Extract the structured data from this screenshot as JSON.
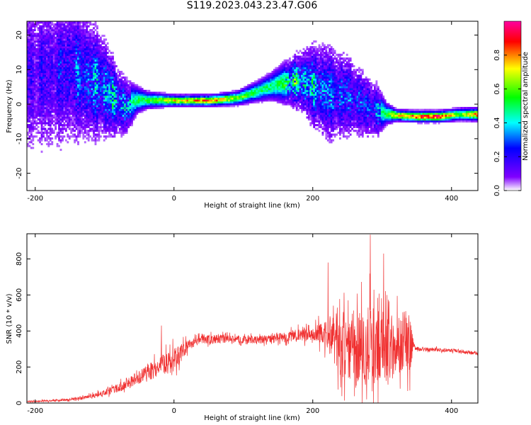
{
  "figure": {
    "title": "S119.2023.043.23.47.G06"
  },
  "chart_data": [
    {
      "type": "heatmap",
      "title": "S119.2023.043.23.47.G06",
      "xlabel": "Height of straight line (km)",
      "ylabel": "Frequency (Hz)",
      "xlim": [
        -212,
        438
      ],
      "ylim": [
        -25,
        24
      ],
      "x_ticks": [
        -200,
        0,
        200,
        400
      ],
      "y_ticks": [
        -20,
        -10,
        0,
        10,
        20
      ],
      "colorbar": {
        "label": "Normalized spectral amplitude",
        "range": [
          0,
          1
        ],
        "ticks": [
          0.0,
          0.2,
          0.4,
          0.6,
          0.8
        ],
        "tick_labels": [
          "0.0",
          "0.2",
          "0.4",
          "0.6",
          "0.8"
        ],
        "colormap": [
          "#ffffff",
          "#8000ff",
          "#0000ff",
          "#00ffff",
          "#00ff00",
          "#ffff00",
          "#ff0000",
          "#ff00a0"
        ]
      },
      "ridge": {
        "x": [
          -200,
          -175,
          -150,
          -125,
          -100,
          -85,
          -70,
          -55,
          -40,
          0,
          50,
          90,
          120,
          140,
          160,
          180,
          200,
          220,
          250,
          270,
          290,
          305,
          320,
          350,
          380,
          410,
          438
        ],
        "frequency": [
          8,
          9,
          10,
          7,
          4,
          1,
          -1,
          1,
          1,
          0.8,
          0.8,
          1.5,
          3.5,
          5,
          6,
          6.5,
          5,
          3,
          2,
          0,
          -2,
          -3,
          -3.5,
          -3.8,
          -3.8,
          -3.2,
          -3.2
        ],
        "amplitude": [
          0.2,
          0.22,
          0.28,
          0.35,
          0.42,
          0.45,
          0.4,
          0.5,
          0.55,
          0.72,
          0.82,
          0.62,
          0.5,
          0.5,
          0.55,
          0.5,
          0.42,
          0.35,
          0.32,
          0.3,
          0.35,
          0.55,
          0.75,
          0.88,
          0.9,
          0.6,
          0.85
        ],
        "spread": [
          12,
          12,
          11,
          9,
          7,
          5,
          4,
          2,
          1.2,
          0.8,
          0.8,
          1,
          1.5,
          2,
          3,
          4,
          6,
          7,
          6,
          5,
          4,
          1.5,
          0.8,
          0.8,
          0.8,
          0.9,
          0.9
        ]
      }
    },
    {
      "type": "line",
      "xlabel": "Height of straight line (km)",
      "ylabel": "SNR (10 * v/v)",
      "xlim": [
        -212,
        438
      ],
      "ylim": [
        0,
        940
      ],
      "x_ticks": [
        -200,
        0,
        200,
        400
      ],
      "y_ticks": [
        0,
        200,
        400,
        600,
        800
      ],
      "color": "#f03030",
      "envelope": {
        "x": [
          -212,
          -160,
          -120,
          -100,
          -80,
          -60,
          -40,
          -20,
          0,
          10,
          20,
          40,
          80,
          120,
          160,
          200,
          220,
          240,
          280,
          320,
          340,
          345,
          350,
          380,
          410,
          438
        ],
        "mean": [
          8,
          15,
          35,
          55,
          85,
          125,
          165,
          210,
          240,
          270,
          320,
          355,
          355,
          350,
          365,
          390,
          380,
          330,
          310,
          320,
          330,
          320,
          300,
          295,
          290,
          275
        ],
        "noise": [
          4,
          6,
          12,
          18,
          25,
          35,
          40,
          55,
          70,
          55,
          30,
          25,
          22,
          22,
          28,
          40,
          80,
          180,
          230,
          180,
          160,
          30,
          12,
          10,
          10,
          10
        ]
      },
      "peaks": [
        {
          "x": -18,
          "y": 430
        },
        {
          "x": 222,
          "y": 780
        },
        {
          "x": 283,
          "y": 935
        },
        {
          "x": 302,
          "y": 830
        }
      ]
    }
  ]
}
